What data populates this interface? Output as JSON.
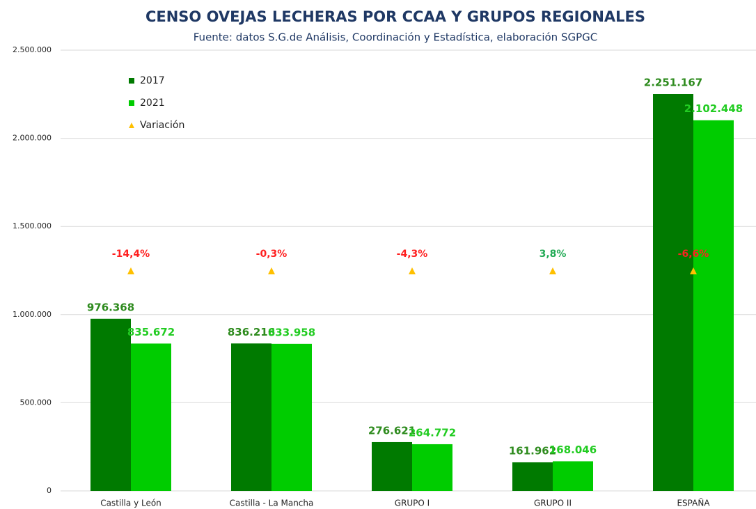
{
  "chart_data": {
    "type": "bar",
    "title": "CENSO OVEJAS LECHERAS POR CCAA Y GRUPOS REGIONALES",
    "subtitle": "Fuente: datos S.G.de Análisis, Coordinación y Estadística, elaboración SGPGC",
    "categories": [
      "Castilla y León",
      "Castilla - La Mancha",
      "GRUPO I",
      "GRUPO II",
      "ESPAÑA"
    ],
    "series": [
      {
        "name": "2017",
        "color": "#007a00",
        "label_color": "#2e8b1e",
        "values": [
          976368,
          836216,
          276621,
          161962,
          2251167
        ],
        "value_labels": [
          "976.368",
          "836.216",
          "276.621",
          "161.962",
          "2.251.167"
        ]
      },
      {
        "name": "2021",
        "color": "#00cc00",
        "label_color": "#22cc22",
        "values": [
          835672,
          833958,
          264772,
          168046,
          2102448
        ],
        "value_labels": [
          "835.672",
          "833.958",
          "264.772",
          "168.046",
          "2.102.448"
        ]
      },
      {
        "name": "Variación",
        "type": "marker",
        "color": "#ffc000",
        "negative_label_color": "#ff2020",
        "positive_label_color": "#22aa55",
        "values": [
          -14.4,
          -0.3,
          -4.3,
          3.8,
          -6.6
        ],
        "value_labels": [
          "-14,4%",
          "-0,3%",
          "-4,3%",
          "3,8%",
          "-6,6%"
        ]
      }
    ],
    "ylim": [
      0,
      2500000
    ],
    "yticks": [
      0,
      {
        "value": 500000,
        "label": "500.000"
      },
      {
        "value": 1000000,
        "label": "1.000.000"
      },
      {
        "value": 1500000,
        "label": "1.500.000"
      },
      {
        "value": 2000000,
        "label": "2.000.000"
      },
      {
        "value": 2500000,
        "label": "2.500.000"
      }
    ],
    "grid": true,
    "legend": "upper left"
  }
}
